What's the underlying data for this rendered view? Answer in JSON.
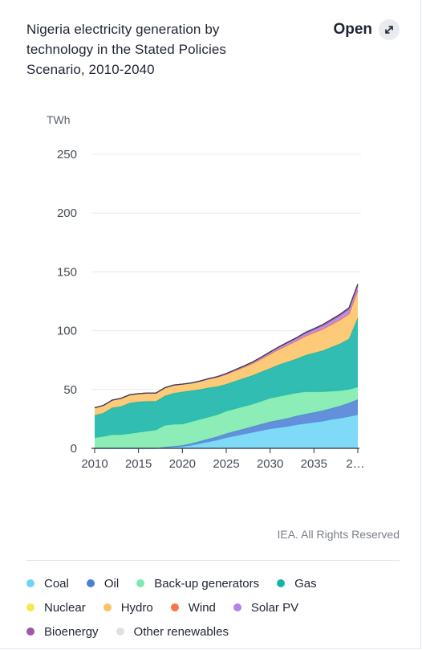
{
  "header": {
    "title": "Nigeria electricity generation by technology in the Stated Policies Scenario, 2010-2040",
    "open_label": "Open"
  },
  "credit": "IEA. All Rights Reserved",
  "chart_data": {
    "type": "area",
    "stacked": true,
    "title": "Nigeria electricity generation by technology in the Stated Policies Scenario, 2010-2040",
    "ylabel": "TWh",
    "xlabel": "",
    "ylim": [
      0,
      250
    ],
    "yticks": [
      0,
      50,
      100,
      150,
      200,
      250
    ],
    "xticks": [
      "2010",
      "2015",
      "2020",
      "2025",
      "2030",
      "2035",
      "2…"
    ],
    "grid": true,
    "legend_position": "bottom",
    "x": [
      2010,
      2011,
      2012,
      2013,
      2014,
      2015,
      2016,
      2017,
      2018,
      2019,
      2020,
      2021,
      2022,
      2023,
      2024,
      2025,
      2026,
      2027,
      2028,
      2029,
      2030,
      2031,
      2032,
      2033,
      2034,
      2035,
      2036,
      2037,
      2038,
      2039,
      2040
    ],
    "series": [
      {
        "name": "Coal",
        "color": "#6dd5f7",
        "values": [
          0,
          0,
          0,
          0,
          0,
          0,
          0,
          0,
          0.5,
          1,
          1.5,
          2.5,
          4,
          5.5,
          7,
          9,
          10.5,
          12,
          13.5,
          15,
          16.5,
          17.5,
          18.5,
          20,
          21,
          22,
          23,
          24.5,
          25.5,
          27,
          28.5
        ]
      },
      {
        "name": "Oil",
        "color": "#4e7fd6",
        "values": [
          0,
          0,
          0,
          0,
          0,
          0,
          0,
          0,
          0.5,
          0.8,
          1,
          1.5,
          2,
          2.5,
          3,
          3.5,
          4,
          4.5,
          5,
          5.5,
          6,
          6.5,
          7,
          7.5,
          8,
          8.5,
          9,
          9.5,
          10.5,
          11.5,
          13
        ]
      },
      {
        "name": "Back-up generators",
        "color": "#7cebad",
        "values": [
          9,
          10,
          11.5,
          11.5,
          12.5,
          13.5,
          14.5,
          15.5,
          18.5,
          18.5,
          18,
          18.5,
          18.5,
          18.5,
          18.5,
          19,
          19,
          19,
          19,
          19.5,
          20,
          20,
          20,
          19.5,
          19,
          17.5,
          16,
          14.5,
          13,
          11.5,
          10.5
        ]
      },
      {
        "name": "Gas",
        "color": "#14b4a6",
        "values": [
          19,
          20,
          23,
          24,
          26,
          26,
          25.5,
          24.5,
          25,
          26.5,
          27.5,
          26.5,
          25.5,
          25,
          24,
          23,
          23.5,
          24,
          24.5,
          25,
          25.5,
          27,
          28,
          29,
          31,
          33,
          35,
          37.5,
          40,
          43,
          59
        ]
      },
      {
        "name": "Nuclear",
        "color": "#f5e84f",
        "values": [
          0,
          0,
          0,
          0,
          0,
          0,
          0,
          0,
          0,
          0,
          0,
          0,
          0,
          0,
          0,
          0,
          0,
          0,
          0,
          0,
          0,
          0,
          0,
          0,
          0,
          0,
          0,
          0,
          0,
          0,
          0
        ]
      },
      {
        "name": "Hydro",
        "color": "#fcc366",
        "values": [
          6.5,
          6.5,
          6.5,
          7,
          7,
          7,
          7,
          7,
          7,
          7,
          6.5,
          6.5,
          7,
          7.5,
          8,
          8.5,
          9,
          9.5,
          10,
          11,
          12,
          13,
          14,
          15,
          16,
          17,
          18,
          19,
          20,
          21,
          22.5
        ]
      },
      {
        "name": "Wind",
        "color": "#f5764a",
        "values": [
          0,
          0,
          0,
          0,
          0,
          0,
          0,
          0,
          0,
          0,
          0,
          0,
          0,
          0,
          0,
          0,
          0,
          0,
          0.1,
          0.1,
          0.2,
          0.2,
          0.3,
          0.3,
          0.4,
          0.4,
          0.5,
          0.5,
          0.6,
          0.6,
          0.7
        ]
      },
      {
        "name": "Solar PV",
        "color": "#b582e8",
        "values": [
          0,
          0,
          0,
          0,
          0,
          0,
          0,
          0,
          0,
          0,
          0,
          0,
          0,
          0.1,
          0.2,
          0.3,
          0.4,
          0.6,
          0.8,
          1,
          1.2,
          1.4,
          1.6,
          1.8,
          2,
          2.2,
          2.5,
          2.8,
          3.1,
          3.4,
          3.8
        ]
      },
      {
        "name": "Bioenergy",
        "color": "#9e59a8",
        "values": [
          0,
          0,
          0,
          0,
          0,
          0,
          0,
          0,
          0,
          0,
          0.1,
          0.1,
          0.2,
          0.2,
          0.3,
          0.3,
          0.4,
          0.4,
          0.5,
          0.5,
          0.6,
          0.7,
          0.8,
          0.9,
          1,
          1.1,
          1.2,
          1.3,
          1.4,
          1.5,
          1.6
        ]
      },
      {
        "name": "Other renewables",
        "color": "#e1e1e1",
        "values": [
          0,
          0,
          0,
          0,
          0,
          0,
          0,
          0,
          0,
          0,
          0,
          0,
          0,
          0,
          0,
          0,
          0,
          0,
          0,
          0,
          0,
          0,
          0,
          0,
          0,
          0,
          0,
          0,
          0,
          0,
          0
        ]
      }
    ]
  },
  "icons": {
    "open": "external-arrow-icon"
  }
}
